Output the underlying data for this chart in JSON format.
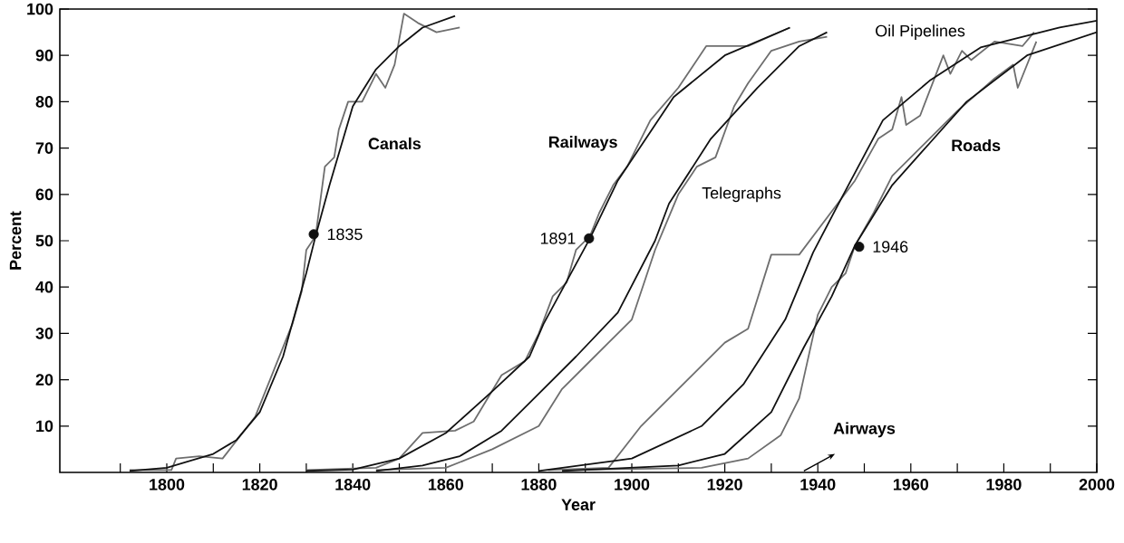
{
  "chart_data": {
    "type": "line",
    "xlabel": "Year",
    "ylabel": "Percent",
    "xlim": [
      1777,
      2000
    ],
    "ylim": [
      0,
      100
    ],
    "xticks": [
      {
        "value": 1790,
        "label": null
      },
      1800,
      {
        "value": 1810,
        "label": null
      },
      1820,
      {
        "value": 1830,
        "label": null
      },
      1840,
      {
        "value": 1850,
        "label": null
      },
      1860,
      {
        "value": 1870,
        "label": null
      },
      1880,
      {
        "value": 1890,
        "label": null
      },
      1900,
      {
        "value": 1910,
        "label": null
      },
      1920,
      {
        "value": 1930,
        "label": null
      },
      1940,
      {
        "value": 1950,
        "label": null
      },
      1960,
      {
        "value": 1970,
        "label": null
      },
      1980,
      {
        "value": 1990,
        "label": null
      },
      2000
    ],
    "yticks": [
      10,
      20,
      30,
      40,
      50,
      60,
      70,
      80,
      90,
      100
    ],
    "series": [
      {
        "color": "#6e6e6e",
        "x": [
          1792,
          1801,
          1802,
          1807,
          1812,
          1819,
          1823,
          1827,
          1829,
          1830,
          1832,
          1834,
          1836,
          1837,
          1839,
          1842,
          1845,
          1847,
          1849,
          1851,
          1854,
          1858,
          1863
        ],
        "values": [
          0.5,
          0.5,
          3,
          3.5,
          3,
          12,
          22,
          32,
          39,
          48,
          51,
          66,
          68,
          74,
          80,
          80,
          86,
          83,
          88,
          99,
          97,
          95,
          96
        ]
      },
      {
        "name": "Canals",
        "color": "#111111",
        "x": [
          1792,
          1800,
          1810,
          1815,
          1820,
          1825,
          1830,
          1832,
          1835,
          1840,
          1845,
          1850,
          1855,
          1862
        ],
        "values": [
          0.3,
          1,
          4,
          7,
          13,
          25,
          43,
          51,
          62,
          79,
          87,
          92,
          96,
          98.5
        ]
      },
      {
        "color": "#6e6e6e",
        "x": [
          1830,
          1845,
          1850,
          1855,
          1862,
          1866,
          1872,
          1877,
          1880,
          1883,
          1886,
          1888,
          1891,
          1893,
          1896,
          1899,
          1904,
          1910,
          1916,
          1925,
          1934
        ],
        "values": [
          0.5,
          1,
          3,
          8.5,
          9,
          11,
          21,
          24,
          30,
          38,
          41,
          48,
          51,
          56,
          62,
          66,
          76,
          83,
          92,
          92,
          96
        ]
      },
      {
        "name": "Railways",
        "color": "#111111",
        "x": [
          1830,
          1840,
          1850,
          1860,
          1870,
          1878,
          1881,
          1891,
          1897,
          1909,
          1920,
          1934
        ],
        "values": [
          0.3,
          0.6,
          3,
          8.5,
          17.5,
          25,
          32,
          50.5,
          63,
          81,
          90,
          96
        ]
      },
      {
        "color": "#6e6e6e",
        "x": [
          1845,
          1860,
          1870,
          1880,
          1885,
          1890,
          1895,
          1900,
          1903,
          1905,
          1910,
          1914,
          1918,
          1922,
          1925,
          1930,
          1936,
          1942
        ],
        "values": [
          0.5,
          1,
          5,
          10,
          18,
          23,
          28,
          33,
          42,
          48,
          60,
          66,
          68,
          79,
          84,
          91,
          93,
          94
        ]
      },
      {
        "name": "Telegraphs",
        "color": "#111111",
        "x": [
          1845,
          1855,
          1863,
          1872,
          1879,
          1888,
          1897,
          1905,
          1908,
          1917,
          1927,
          1936,
          1942
        ],
        "values": [
          0.3,
          1.5,
          3.5,
          9,
          16,
          25,
          34.5,
          50,
          58,
          72,
          83,
          92,
          95
        ]
      },
      {
        "color": "#6e6e6e",
        "x": [
          1882,
          1895,
          1902,
          1912,
          1920,
          1925,
          1930,
          1936,
          1942,
          1948,
          1953,
          1956,
          1958,
          1959,
          1962,
          1967,
          1968.5,
          1971,
          1973,
          1978,
          1984,
          1986.5
        ],
        "values": [
          0.5,
          1,
          10,
          20,
          28,
          31,
          47,
          47,
          55,
          63,
          72,
          74,
          81,
          75,
          77,
          90,
          86,
          91,
          89,
          93,
          92,
          95
        ]
      },
      {
        "name": "Oil Pipelines",
        "color": "#111111",
        "x": [
          1880,
          1900,
          1915,
          1924,
          1933,
          1939,
          1945,
          1954,
          1964,
          1975,
          1992,
          2000
        ],
        "values": [
          0.3,
          3,
          10,
          19,
          33,
          47.5,
          59,
          76,
          84.5,
          91.7,
          96,
          97.5
        ]
      },
      {
        "color": "#6e6e6e",
        "x": [
          1885,
          1915,
          1925,
          1932,
          1936,
          1940,
          1943,
          1946,
          1948,
          1952,
          1956,
          1962,
          1970,
          1978,
          1982,
          1983,
          1987
        ],
        "values": [
          0.5,
          1,
          3,
          8,
          16,
          34,
          40,
          43,
          49,
          56,
          64,
          70,
          78,
          85,
          88,
          83,
          93
        ]
      },
      {
        "name": "Roads",
        "color": "#111111",
        "x": [
          1885,
          1910,
          1920,
          1930,
          1937,
          1943,
          1948,
          1956,
          1964,
          1972,
          1985,
          2000
        ],
        "values": [
          0.3,
          1.5,
          4,
          13,
          27,
          38,
          49,
          62,
          71,
          80,
          90,
          95
        ]
      },
      {
        "type": "scatter",
        "color": "#111111",
        "x": [
          1831.6,
          1890.8,
          1948.9
        ],
        "values": [
          51.4,
          50.5,
          48.7
        ]
      }
    ],
    "annotations": [
      "Airways",
      {
        "text": "1835",
        "x": 1831.6,
        "y": 51.4
      },
      {
        "text": "1891",
        "x": 1890.8,
        "y": 50.5
      },
      {
        "text": "1946",
        "x": 1948.9,
        "y": 48.7
      }
    ]
  }
}
